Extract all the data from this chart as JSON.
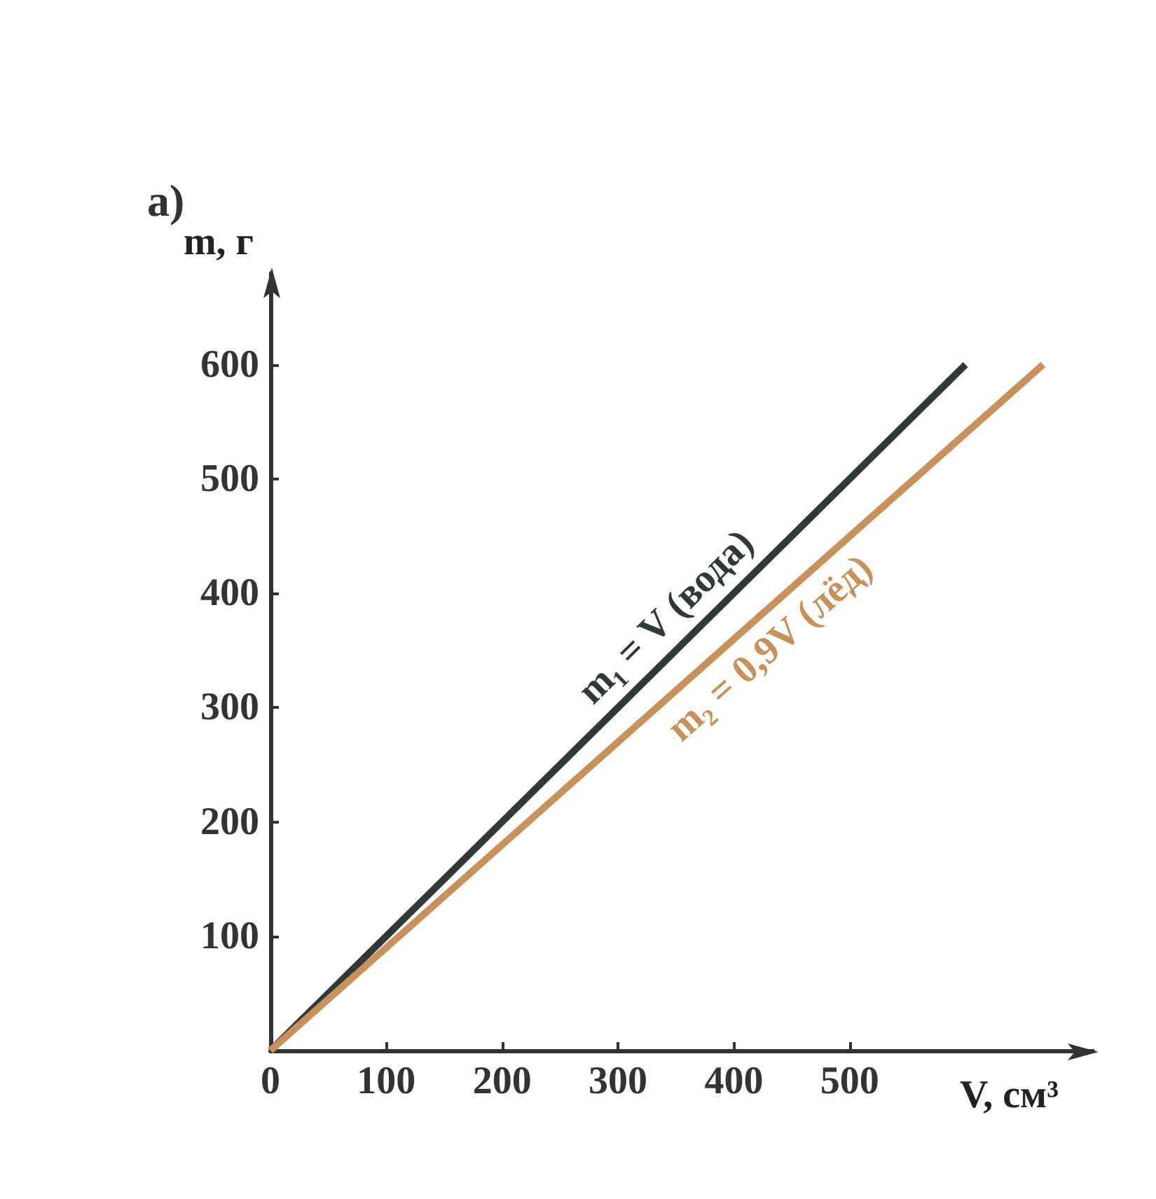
{
  "chart_data": {
    "type": "line",
    "title": "а)",
    "xlabel": "V, см³",
    "ylabel": "m, г",
    "xlim": [
      0,
      710
    ],
    "ylim": [
      0,
      680
    ],
    "xticks": [
      0,
      100,
      200,
      300,
      400,
      500
    ],
    "yticks": [
      {
        "value": 0,
        "label": null
      },
      100,
      200,
      300,
      400,
      500,
      600
    ],
    "grid": false,
    "legend": false,
    "marker": "none",
    "line_style": "solid",
    "series": [
      {
        "name": "m₁ = V (вода)",
        "color": "#2f3a36",
        "x": [
          0,
          600
        ],
        "values": [
          0,
          600
        ]
      },
      {
        "name": "m₂ = 0,9V (лёд)",
        "color": "#c8915a",
        "x": [
          0,
          667
        ],
        "values": [
          0,
          600
        ]
      }
    ]
  }
}
